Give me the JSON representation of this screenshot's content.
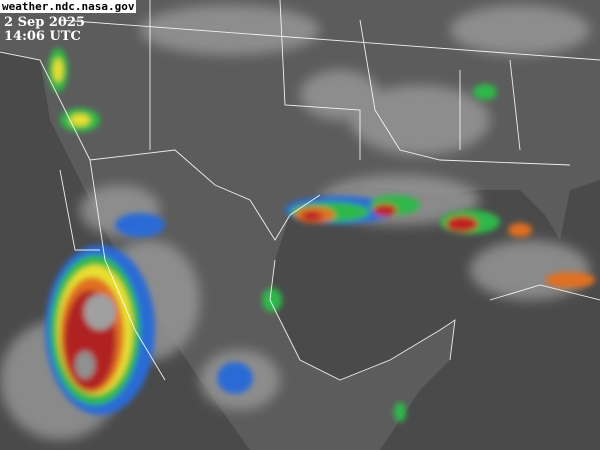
{
  "source": "weather.ndc.nasa.gov",
  "date": "2 Sep 2025",
  "time": "14:06 UTC",
  "colors": {
    "ocean": "#4a4a4a",
    "land": "#5a5a5a",
    "borders": "#ffffff",
    "cold_tops": [
      "#2b6bd6",
      "#2fb84a",
      "#e8e030",
      "#e07020",
      "#c02020",
      "#909090"
    ]
  }
}
